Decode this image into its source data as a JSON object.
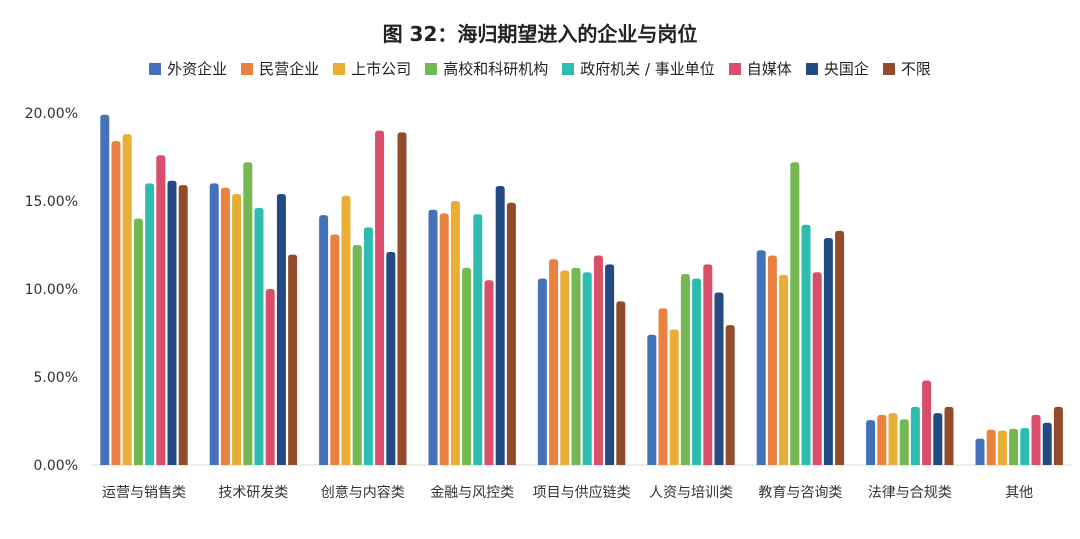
{
  "chart_data": {
    "type": "bar",
    "title": "图 32：海归期望进入的企业与岗位",
    "xlabel": "",
    "ylabel": "",
    "ylim": [
      0,
      20
    ],
    "yticks": [
      "0.00%",
      "5.00%",
      "10.00%",
      "15.00%",
      "20.00%"
    ],
    "grid": false,
    "legend_position": "top",
    "categories": [
      "运营与销售类",
      "技术研发类",
      "创意与内容类",
      "金融与风控类",
      "项目与供应链类",
      "人资与培训类",
      "教育与咨询类",
      "法律与合规类",
      "其他"
    ],
    "series": [
      {
        "name": "外资企业",
        "color": "#4472b8",
        "values": [
          19.9,
          16.0,
          14.2,
          14.5,
          10.6,
          7.4,
          12.2,
          2.55,
          1.5
        ]
      },
      {
        "name": "民营企业",
        "color": "#e98240",
        "values": [
          18.4,
          15.75,
          13.1,
          14.3,
          11.7,
          8.9,
          11.9,
          2.85,
          2.0
        ]
      },
      {
        "name": "上市公司",
        "color": "#e8ae35",
        "values": [
          18.8,
          15.4,
          15.3,
          15.0,
          11.05,
          7.7,
          10.8,
          2.95,
          1.95
        ]
      },
      {
        "name": "高校和科研机构",
        "color": "#75b752",
        "values": [
          14.0,
          17.2,
          12.5,
          11.2,
          11.2,
          10.85,
          17.2,
          2.6,
          2.05
        ]
      },
      {
        "name": "政府机关 / 事业单位",
        "color": "#2dbcb0",
        "values": [
          16.0,
          14.6,
          13.5,
          14.25,
          10.95,
          10.6,
          13.65,
          3.3,
          2.1
        ]
      },
      {
        "name": "自媒体",
        "color": "#d94f69",
        "values": [
          17.6,
          10.0,
          19.0,
          10.5,
          11.9,
          11.4,
          10.95,
          4.8,
          2.85
        ]
      },
      {
        "name": "央国企",
        "color": "#244a82",
        "values": [
          16.15,
          15.4,
          12.1,
          15.85,
          11.4,
          9.8,
          12.9,
          2.95,
          2.4
        ]
      },
      {
        "name": "不限",
        "color": "#924c2b",
        "values": [
          15.9,
          11.95,
          18.9,
          14.9,
          9.3,
          7.95,
          13.3,
          3.3,
          3.3
        ]
      }
    ]
  }
}
